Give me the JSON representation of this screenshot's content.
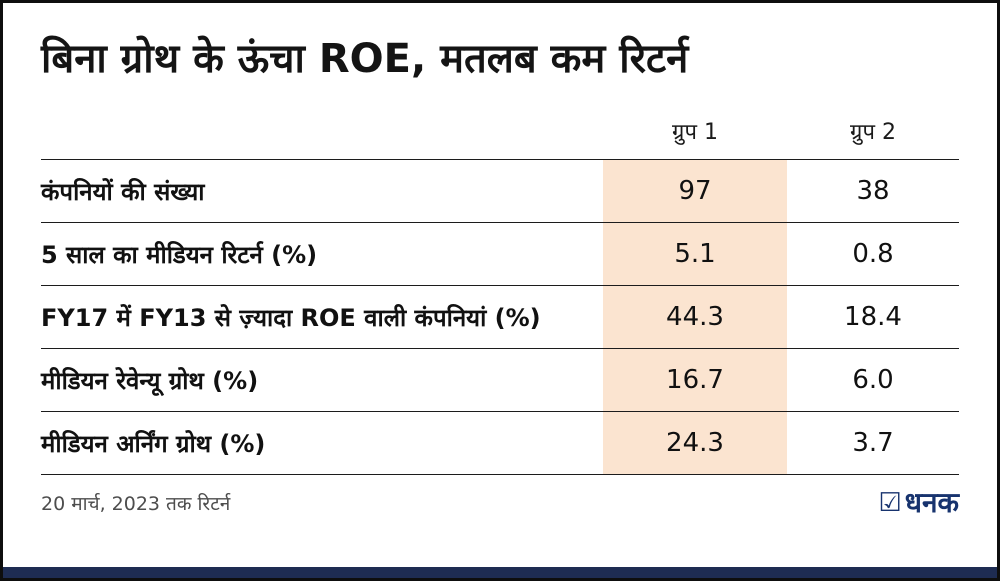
{
  "title": "बिना ग्रोथ के ऊंचा ROE, मतलब कम रिटर्न",
  "chart_data": {
    "type": "table",
    "title": "बिना ग्रोथ के ऊंचा ROE, मतलब कम रिटर्न",
    "columns": [
      "",
      "ग्रुप 1",
      "ग्रुप 2"
    ],
    "rows": [
      {
        "label": "कंपनियों की संख्या",
        "group1": "97",
        "group2": "38"
      },
      {
        "label": "5 साल का मीडियन रिटर्न (%)",
        "group1": "5.1",
        "group2": "0.8"
      },
      {
        "label": "FY17 में FY13 से ज़्यादा ROE वाली कंपनियां (%)",
        "group1": "44.3",
        "group2": "18.4"
      },
      {
        "label": "मीडियन रेवेन्यू ग्रोथ (%)",
        "group1": "16.7",
        "group2": "6.0"
      },
      {
        "label": "मीडियन अर्निंग ग्रोथ (%)",
        "group1": "24.3",
        "group2": "3.7"
      }
    ],
    "highlighted_column": "ग्रुप 1",
    "legend_position": "none",
    "grid": "horizontal-rules"
  },
  "footer": {
    "note": "20 मार्च, 2023 तक रिटर्न",
    "brand": "धनक",
    "brand_icon": "☑"
  },
  "colors": {
    "highlight": "#fbe4d0",
    "brand_blue": "#17336e",
    "bottom_bar": "#1e2c52",
    "rule": "#1c1c1c"
  }
}
